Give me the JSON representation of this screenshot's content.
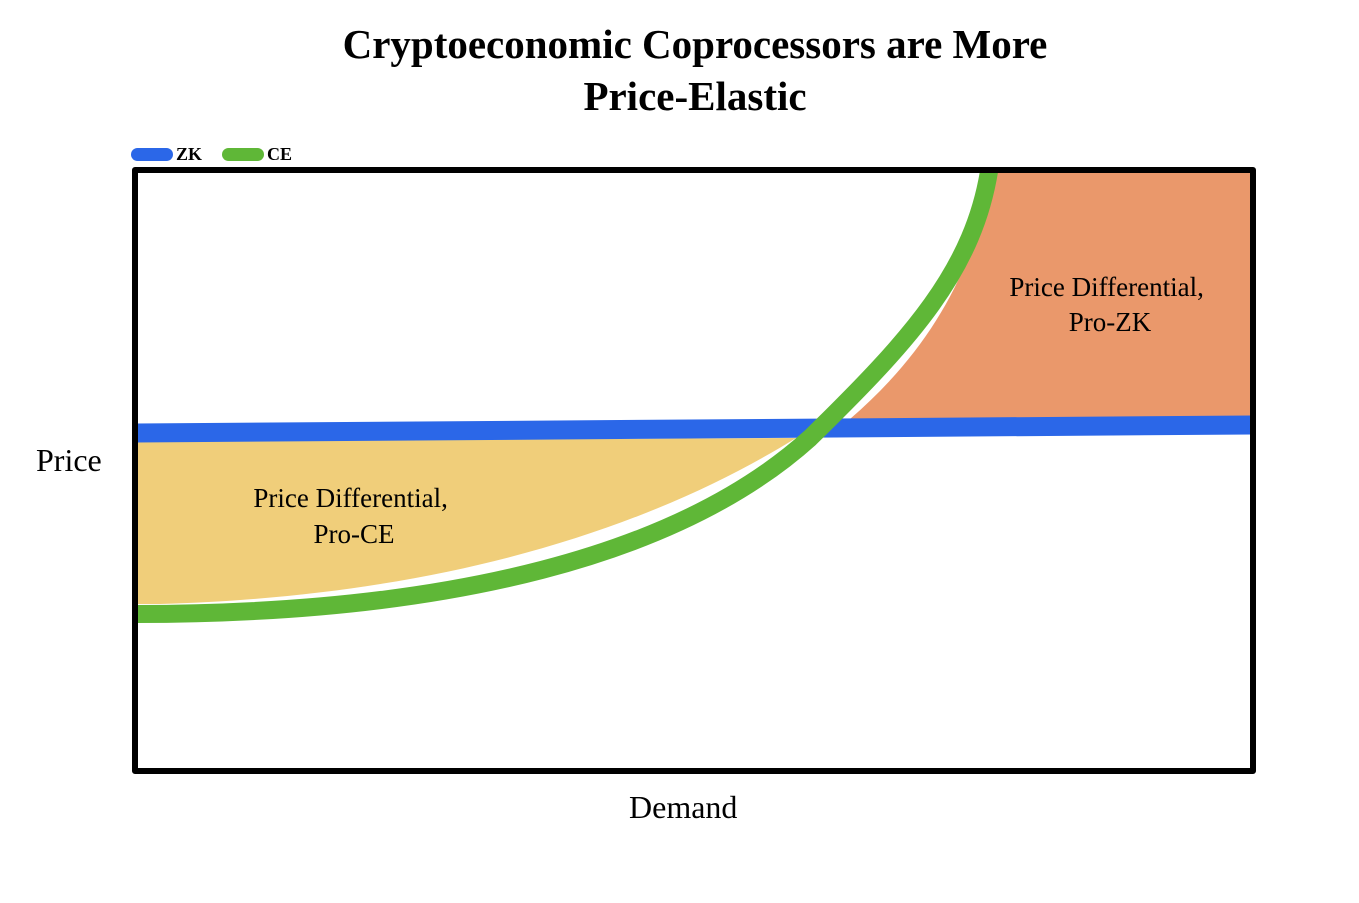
{
  "chart_data": {
    "type": "line",
    "title": [
      "Cryptoeconomic Coprocessors are More",
      "Price-Elastic"
    ],
    "xlabel": "Demand",
    "ylabel": "Price",
    "legend": {
      "placement": "top-left",
      "entries": [
        "ZK",
        "CE"
      ]
    },
    "grid": false,
    "series": [
      {
        "name": "ZK",
        "color": "#2b67e8"
      },
      {
        "name": "CE",
        "color": "#5fb737"
      }
    ],
    "regions": [
      {
        "lines": [
          "Price Differential,",
          "Pro-CE"
        ],
        "color": "#f0ce7a"
      },
      {
        "lines": [
          "Price Differential,",
          "Pro-ZK"
        ],
        "color": "#ea986b"
      }
    ]
  }
}
